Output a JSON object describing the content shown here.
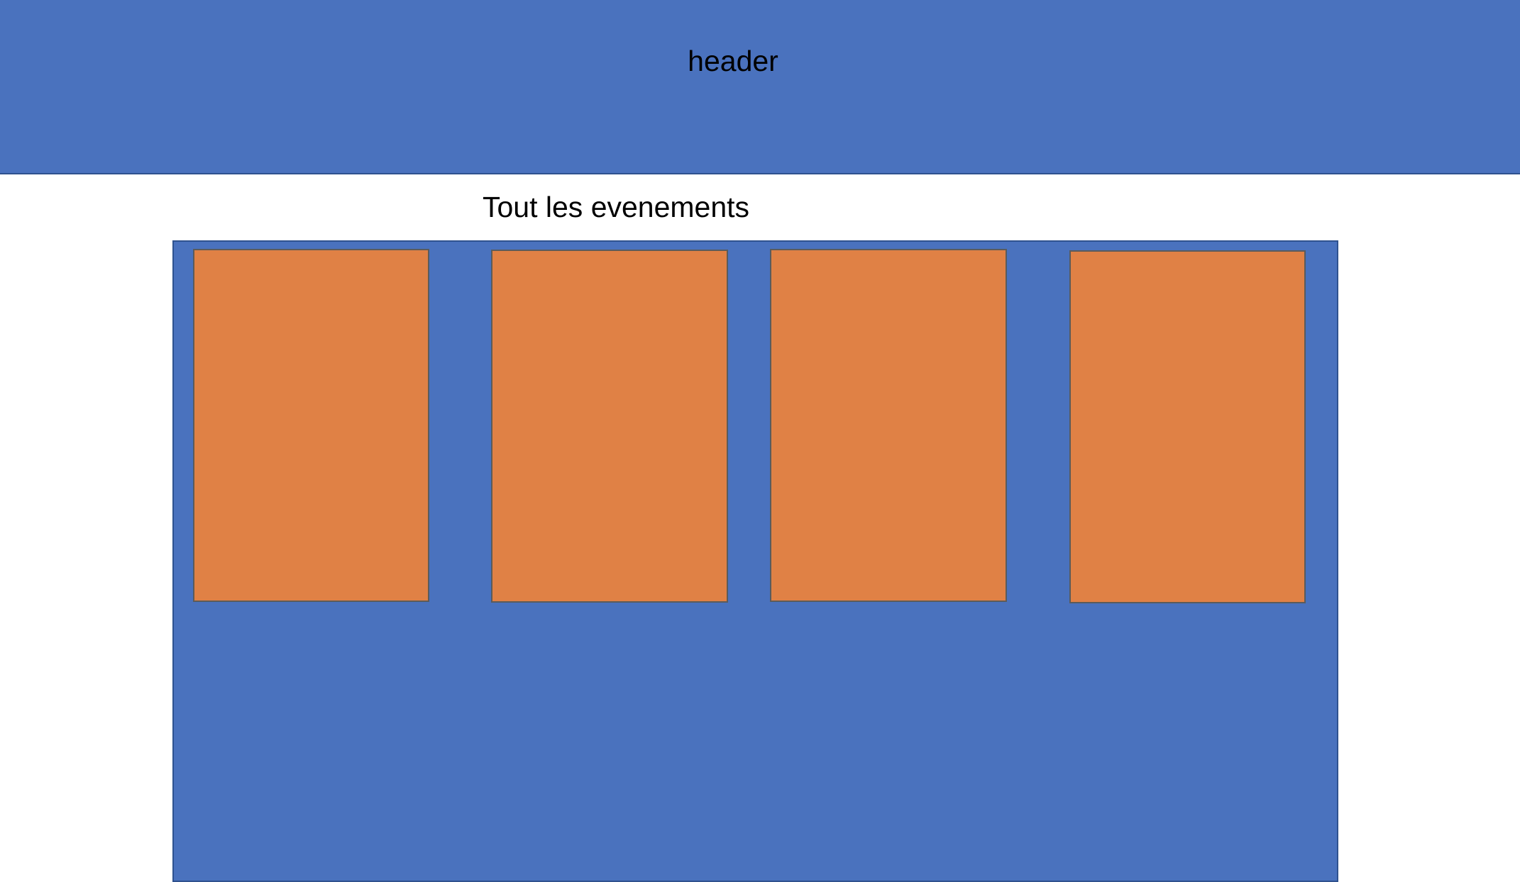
{
  "colors": {
    "header_bg": "#4a72be",
    "container_bg": "#4a72be",
    "card_bg": "#e08145",
    "border": "#2f528f"
  },
  "header": {
    "title": "header"
  },
  "section": {
    "title": "Tout les evenements"
  },
  "events": {
    "cards": [
      {
        "label": ""
      },
      {
        "label": ""
      },
      {
        "label": ""
      },
      {
        "label": ""
      }
    ]
  }
}
